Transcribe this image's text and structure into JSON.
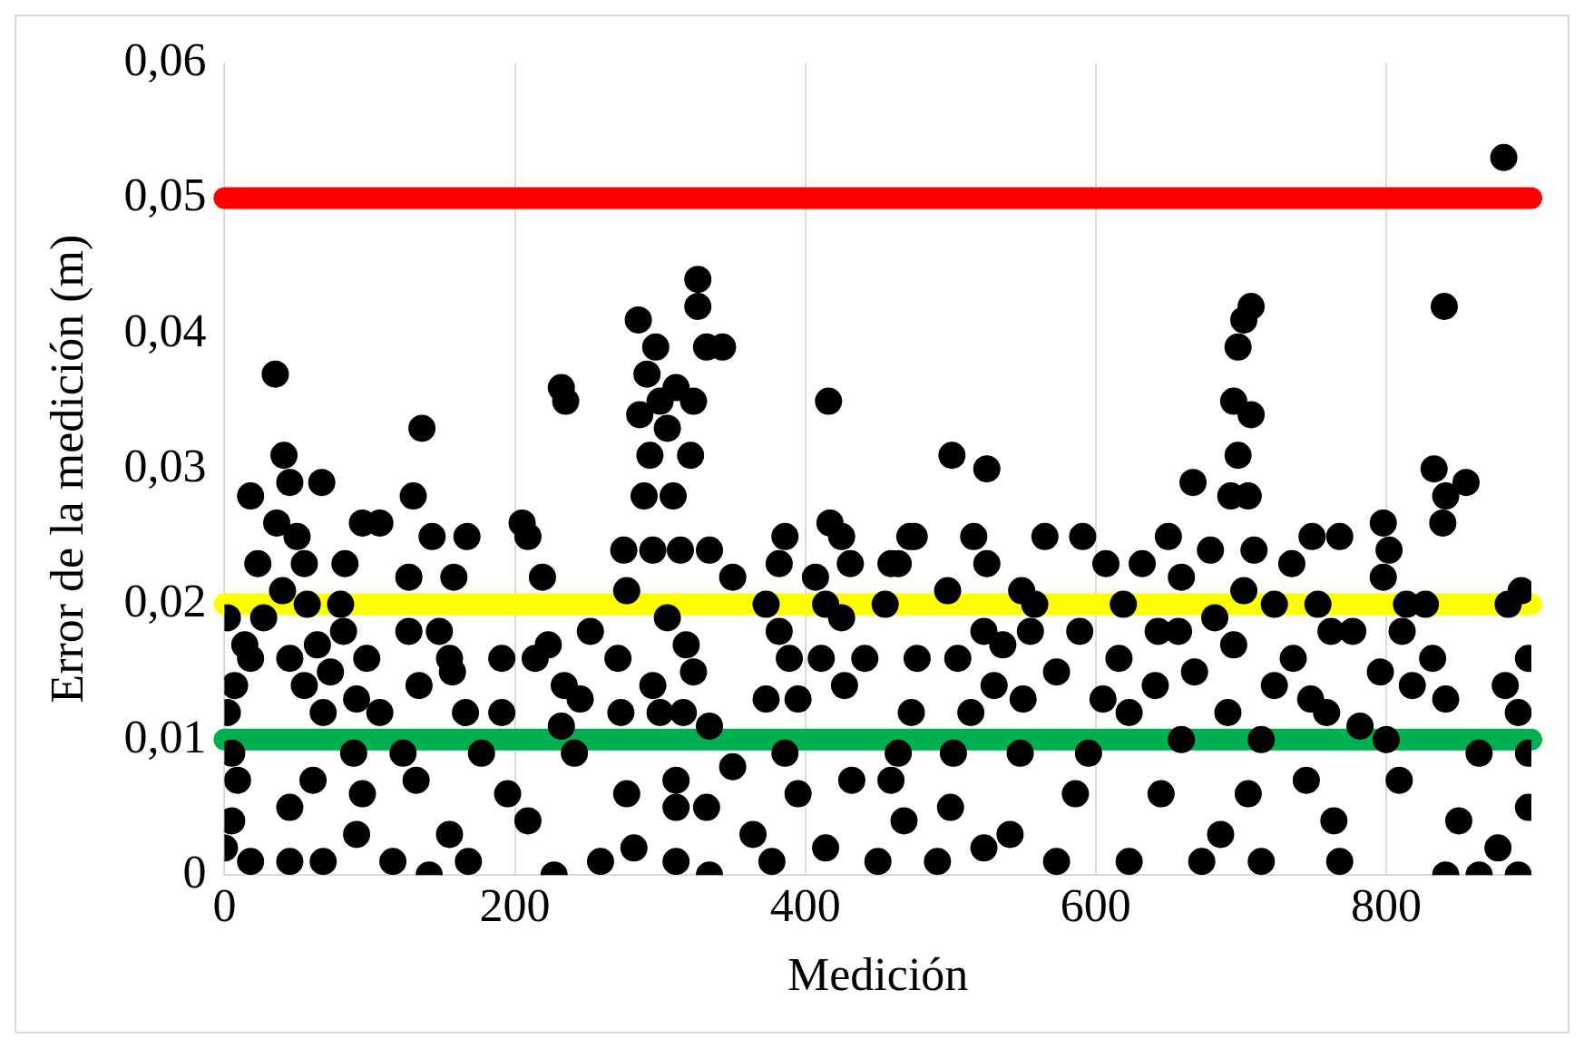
{
  "chart_data": {
    "type": "scatter",
    "xlabel": "Medición",
    "ylabel": "Error de la medición (m)",
    "xlim": [
      0,
      900
    ],
    "xticks": [
      0,
      200,
      400,
      600,
      800
    ],
    "ylim": [
      0,
      0.06
    ],
    "yticks": [
      {
        "value": 0,
        "label": "0"
      },
      {
        "value": 0.01,
        "label": "0,01"
      },
      {
        "value": 0.02,
        "label": "0,02"
      },
      {
        "value": 0.03,
        "label": "0,03"
      },
      {
        "value": 0.04,
        "label": "0,04"
      },
      {
        "value": 0.05,
        "label": "0,05"
      },
      {
        "value": 0.06,
        "label": "0,06"
      }
    ],
    "grid": "x",
    "legend": false,
    "marker": "circle",
    "ref_lines": [
      {
        "axis": "y",
        "value": 0.05,
        "color": "#ff0000"
      },
      {
        "axis": "y",
        "value": 0.02,
        "color": "#ffff00"
      },
      {
        "axis": "y",
        "value": 0.01,
        "color": "#00b050"
      }
    ],
    "series": [
      {
        "color": "#000000",
        "x": [
          35,
          136,
          130,
          232,
          235,
          285,
          297,
          326,
          326,
          332,
          343,
          291,
          300,
          311,
          323,
          286,
          305,
          293,
          321,
          289,
          309,
          416,
          41,
          18,
          45,
          67,
          95,
          107,
          36,
          50,
          23,
          55,
          83,
          143,
          167,
          127,
          158,
          205,
          209,
          219,
          275,
          295,
          314,
          334,
          277,
          350,
          386,
          382,
          407,
          417,
          425,
          431,
          459,
          472,
          40,
          2,
          27,
          57,
          80,
          14,
          64,
          82,
          18,
          45,
          127,
          148,
          155,
          191,
          214,
          223,
          252,
          271,
          305,
          318,
          323,
          373,
          382,
          389,
          414,
          425,
          455,
          441,
          7,
          55,
          73,
          98,
          134,
          157,
          91,
          107,
          68,
          2,
          166,
          191,
          234,
          245,
          232,
          273,
          295,
          300,
          316,
          334,
          373,
          395,
          411,
          427,
          5,
          9,
          5,
          0,
          18,
          61,
          45,
          45,
          68,
          89,
          95,
          91,
          116,
          123,
          132,
          141,
          155,
          168,
          177,
          195,
          209,
          227,
          241,
          259,
          277,
          282,
          311,
          311,
          311,
          334,
          332,
          350,
          364,
          377,
          386,
          395,
          414,
          432,
          450,
          468,
          464,
          881,
          840,
          707,
          702,
          698,
          695,
          707,
          698,
          693,
          705,
          667,
          833,
          855,
          841,
          839,
          501,
          525,
          475,
          516,
          565,
          591,
          525,
          464,
          607,
          632,
          650,
          659,
          679,
          709,
          735,
          749,
          768,
          798,
          802,
          798,
          498,
          549,
          558,
          619,
          702,
          723,
          753,
          814,
          827,
          893,
          884,
          523,
          555,
          589,
          643,
          657,
          682,
          762,
          777,
          811,
          477,
          505,
          536,
          573,
          616,
          695,
          736,
          832,
          898,
          530,
          605,
          641,
          668,
          723,
          748,
          796,
          818,
          882,
          473,
          514,
          550,
          623,
          691,
          759,
          841,
          891,
          502,
          548,
          595,
          659,
          714,
          782,
          800,
          864,
          898,
          459,
          500,
          541,
          586,
          645,
          686,
          705,
          745,
          764,
          809,
          850,
          898,
          491,
          523,
          573,
          623,
          673,
          714,
          768,
          841,
          864,
          891,
          877
        ],
        "values": [
          0.037,
          0.033,
          0.028,
          0.036,
          0.035,
          0.041,
          0.039,
          0.044,
          0.042,
          0.039,
          0.039,
          0.037,
          0.035,
          0.036,
          0.035,
          0.034,
          0.033,
          0.031,
          0.031,
          0.028,
          0.028,
          0.035,
          0.031,
          0.028,
          0.029,
          0.029,
          0.026,
          0.026,
          0.026,
          0.025,
          0.023,
          0.023,
          0.023,
          0.025,
          0.025,
          0.022,
          0.022,
          0.026,
          0.025,
          0.022,
          0.024,
          0.024,
          0.024,
          0.024,
          0.021,
          0.022,
          0.025,
          0.023,
          0.022,
          0.026,
          0.025,
          0.023,
          0.023,
          0.025,
          0.021,
          0.019,
          0.019,
          0.02,
          0.02,
          0.017,
          0.017,
          0.018,
          0.016,
          0.016,
          0.018,
          0.018,
          0.016,
          0.016,
          0.016,
          0.017,
          0.018,
          0.016,
          0.019,
          0.017,
          0.015,
          0.02,
          0.018,
          0.016,
          0.02,
          0.019,
          0.02,
          0.016,
          0.014,
          0.014,
          0.015,
          0.016,
          0.014,
          0.015,
          0.013,
          0.012,
          0.012,
          0.012,
          0.012,
          0.012,
          0.014,
          0.013,
          0.011,
          0.012,
          0.014,
          0.012,
          0.012,
          0.011,
          0.013,
          0.013,
          0.016,
          0.014,
          0.009,
          0.007,
          0.004,
          0.002,
          0.001,
          0.007,
          0.005,
          0.001,
          0.001,
          0.009,
          0.006,
          0.003,
          0.001,
          0.009,
          0.007,
          0,
          0.003,
          0.001,
          0.009,
          0.006,
          0.004,
          0,
          0.009,
          0.001,
          0.006,
          0.002,
          0.007,
          0.005,
          0.001,
          0,
          0.005,
          0.008,
          0.003,
          0.001,
          0.009,
          0.006,
          0.002,
          0.007,
          0.001,
          0.004,
          0.009,
          0.053,
          0.042,
          0.042,
          0.041,
          0.039,
          0.035,
          0.034,
          0.031,
          0.028,
          0.028,
          0.029,
          0.03,
          0.029,
          0.028,
          0.026,
          0.031,
          0.03,
          0.025,
          0.025,
          0.025,
          0.025,
          0.023,
          0.023,
          0.023,
          0.023,
          0.025,
          0.022,
          0.024,
          0.024,
          0.023,
          0.025,
          0.025,
          0.026,
          0.024,
          0.022,
          0.021,
          0.021,
          0.02,
          0.02,
          0.021,
          0.02,
          0.02,
          0.02,
          0.02,
          0.021,
          0.02,
          0.018,
          0.018,
          0.018,
          0.018,
          0.018,
          0.019,
          0.018,
          0.018,
          0.018,
          0.016,
          0.016,
          0.017,
          0.015,
          0.016,
          0.017,
          0.016,
          0.016,
          0.016,
          0.014,
          0.013,
          0.014,
          0.015,
          0.014,
          0.013,
          0.015,
          0.014,
          0.014,
          0.012,
          0.012,
          0.013,
          0.012,
          0.012,
          0.012,
          0.013,
          0.012,
          0.009,
          0.009,
          0.009,
          0.01,
          0.01,
          0.011,
          0.01,
          0.009,
          0.009,
          0.007,
          0.005,
          0.003,
          0.006,
          0.006,
          0.003,
          0.006,
          0.007,
          0.004,
          0.007,
          0.004,
          0.005,
          0.001,
          0.002,
          0.001,
          0.001,
          0.001,
          0.001,
          0.001,
          0,
          0,
          0,
          0.002
        ]
      }
    ]
  }
}
